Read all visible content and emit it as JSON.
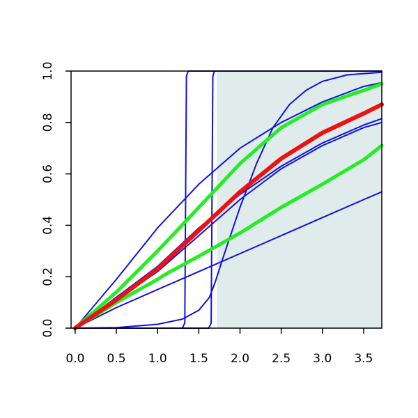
{
  "chart_data": {
    "type": "line",
    "title": "",
    "xlabel": "",
    "ylabel": "",
    "xlim": [
      -0.05,
      3.72
    ],
    "ylim": [
      0,
      1
    ],
    "x_ticks": [
      "0.0",
      "0.5",
      "1.0",
      "1.5",
      "2.0",
      "2.5",
      "3.0",
      "3.5"
    ],
    "y_ticks": [
      "0.0",
      "0.2",
      "0.4",
      "0.6",
      "0.8",
      "1.0"
    ],
    "grid": false,
    "legend": "none",
    "shaded_region": {
      "x_from": 1.72,
      "x_to": 3.72,
      "color": "#dfeceb"
    },
    "series": [
      {
        "color": "#ee1111",
        "width": 6,
        "x": [
          0,
          0.5,
          1.0,
          1.5,
          2.0,
          2.5,
          3.0,
          3.5,
          3.72
        ],
        "y": [
          0,
          0.11,
          0.23,
          0.38,
          0.53,
          0.66,
          0.76,
          0.835,
          0.87
        ]
      },
      {
        "color": "#22ee22",
        "width": 5,
        "x": [
          0,
          0.5,
          1.0,
          1.5,
          2.0,
          2.5,
          3.0,
          3.5,
          3.72
        ],
        "y": [
          0,
          0.14,
          0.3,
          0.47,
          0.64,
          0.78,
          0.87,
          0.925,
          0.95
        ]
      },
      {
        "color": "#22ee22",
        "width": 5,
        "x": [
          0,
          0.5,
          1.0,
          1.1,
          1.5,
          2.0,
          2.5,
          3.0,
          3.5,
          3.72
        ],
        "y": [
          0,
          0.1,
          0.19,
          0.21,
          0.28,
          0.37,
          0.47,
          0.56,
          0.655,
          0.71
        ]
      },
      {
        "color": "#1111dd",
        "width": 2,
        "x": [
          0,
          0.5,
          1.0,
          1.5,
          2.0,
          2.5,
          3.0,
          3.5,
          3.72
        ],
        "y": [
          0,
          0.19,
          0.39,
          0.56,
          0.7,
          0.8,
          0.88,
          0.94,
          0.955
        ]
      },
      {
        "color": "#1111dd",
        "width": 2,
        "x": [
          0,
          0.5,
          1.0,
          1.5,
          2.0,
          2.5,
          3.0,
          3.5,
          3.72
        ],
        "y": [
          0,
          0.12,
          0.24,
          0.39,
          0.52,
          0.63,
          0.72,
          0.79,
          0.815
        ]
      },
      {
        "color": "#1111dd",
        "width": 2,
        "x": [
          0,
          0.5,
          1.0,
          1.5,
          2.0,
          2.5,
          3.0,
          3.5,
          3.72
        ],
        "y": [
          0,
          0.11,
          0.22,
          0.36,
          0.5,
          0.62,
          0.71,
          0.78,
          0.8
        ]
      },
      {
        "color": "#1111dd",
        "width": 2,
        "x": [
          0,
          0.5,
          1.0,
          1.5,
          2.0,
          2.5,
          3.0,
          3.5,
          3.72
        ],
        "y": [
          0,
          0.08,
          0.15,
          0.22,
          0.29,
          0.36,
          0.43,
          0.5,
          0.53
        ]
      },
      {
        "color": "#1111dd",
        "width": 2,
        "x": [
          0,
          0.5,
          1.0,
          1.3,
          1.5,
          1.63,
          1.7,
          1.8,
          2.0,
          2.2,
          2.4,
          2.6,
          2.8,
          3.0,
          3.3,
          3.72
        ],
        "y": [
          0,
          0.002,
          0.015,
          0.035,
          0.07,
          0.12,
          0.18,
          0.28,
          0.47,
          0.64,
          0.78,
          0.87,
          0.925,
          0.96,
          0.985,
          0.995
        ]
      },
      {
        "color": "#1111dd",
        "width": 2,
        "x": [
          0,
          1.3,
          1.33,
          1.34,
          1.35,
          1.37,
          3.72
        ],
        "y": [
          0,
          0,
          0.02,
          0.5,
          0.98,
          1.0,
          1.0
        ]
      },
      {
        "color": "#1111dd",
        "width": 2,
        "x": [
          0,
          1.62,
          1.65,
          1.66,
          1.67,
          1.69,
          3.72
        ],
        "y": [
          0,
          0,
          0.02,
          0.5,
          0.98,
          1.0,
          1.0
        ]
      }
    ]
  }
}
